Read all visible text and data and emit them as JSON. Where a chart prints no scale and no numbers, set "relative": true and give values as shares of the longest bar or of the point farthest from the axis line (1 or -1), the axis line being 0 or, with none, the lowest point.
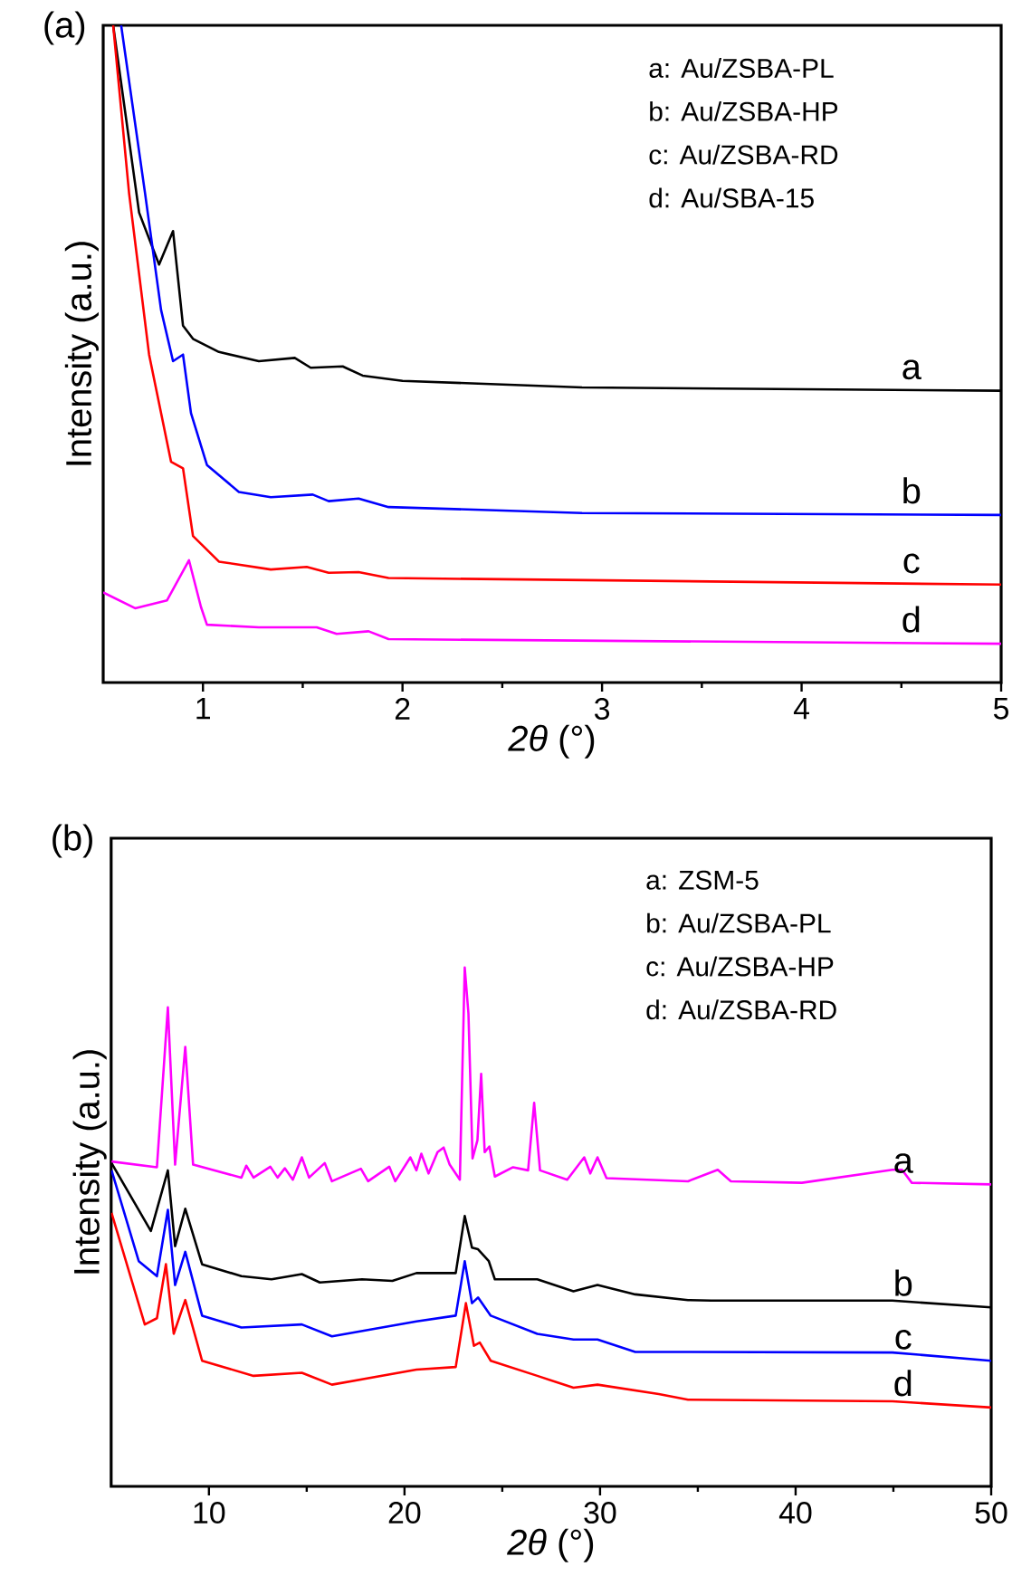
{
  "chart_data": [
    {
      "type": "line",
      "title": "(a)",
      "xlabel": "*2θ* (°)",
      "ylabel": "Intensity (a.u.)",
      "relative": true,
      "xlim": [
        0.5,
        5
      ],
      "xticks": [
        1,
        2,
        3,
        4,
        5
      ],
      "annotations": [
        "a: Au/ZSBA-PL",
        "b: Au/ZSBA-HP",
        "c: Au/ZSBA-RD",
        "d: Au/SBA-15"
      ],
      "series": [
        {
          "name": "a",
          "color": "#000000",
          "x": [
            0.55,
            0.68,
            0.78,
            0.85,
            0.9,
            0.95,
            1.08,
            1.28,
            1.46,
            1.54,
            1.7,
            1.8,
            2.0,
            2.9,
            5.0
          ],
          "values": [
            1,
            0.715,
            0.636,
            0.687,
            0.543,
            0.523,
            0.503,
            0.489,
            0.494,
            0.479,
            0.481,
            0.467,
            0.459,
            0.449,
            0.444
          ]
        },
        {
          "name": "b",
          "color": "#0000ff",
          "x": [
            0.59,
            0.71,
            0.79,
            0.85,
            0.9,
            0.94,
            1.02,
            1.18,
            1.34,
            1.55,
            1.63,
            1.78,
            1.93,
            2.9,
            5.0
          ],
          "values": [
            1,
            0.744,
            0.567,
            0.489,
            0.499,
            0.41,
            0.331,
            0.29,
            0.282,
            0.286,
            0.276,
            0.28,
            0.267,
            0.258,
            0.255
          ]
        },
        {
          "name": "c",
          "color": "#ff0000",
          "x": [
            0.55,
            0.63,
            0.73,
            0.84,
            0.9,
            0.95,
            1.08,
            1.34,
            1.52,
            1.63,
            1.78,
            1.93,
            5.0
          ],
          "values": [
            1,
            0.744,
            0.499,
            0.336,
            0.326,
            0.223,
            0.184,
            0.172,
            0.176,
            0.167,
            0.168,
            0.159,
            0.149
          ]
        },
        {
          "name": "d",
          "color": "#ff00ff",
          "x": [
            0.5,
            0.66,
            0.82,
            0.93,
            0.99,
            1.02,
            1.28,
            1.57,
            1.67,
            1.83,
            1.93,
            5.0
          ],
          "values": [
            0.137,
            0.113,
            0.125,
            0.186,
            0.115,
            0.088,
            0.084,
            0.084,
            0.074,
            0.078,
            0.066,
            0.059
          ]
        }
      ]
    },
    {
      "type": "line",
      "title": "(b)",
      "xlabel": "*2θ* (°)",
      "ylabel": "Intensity (a.u.)",
      "relative": true,
      "xlim": [
        5,
        50
      ],
      "xticks": [
        10,
        20,
        30,
        40,
        50
      ],
      "annotations": [
        "a: ZSM-5",
        "b: Au/ZSBA-PL",
        "c: Au/ZSBA-HP",
        "d: Au/ZSBA-RD"
      ],
      "series": [
        {
          "name": "a",
          "color": "#ff00ff",
          "x": [
            5.02,
            7.34,
            7.9,
            8.27,
            8.79,
            9.19,
            11.66,
            11.91,
            12.28,
            13.14,
            13.51,
            13.88,
            14.29,
            14.75,
            15.12,
            15.92,
            16.29,
            17.77,
            18.14,
            19.22,
            19.53,
            20.3,
            20.61,
            20.86,
            21.23,
            21.69,
            22.0,
            22.31,
            22.83,
            23.08,
            23.27,
            23.48,
            23.73,
            23.92,
            24.1,
            24.34,
            24.62,
            25.55,
            26.32,
            26.63,
            26.93,
            28.32,
            29.19,
            29.5,
            29.87,
            30.33,
            34.5,
            36.02,
            36.69,
            40.32,
            44.95,
            45.44,
            45.94,
            50.0
          ],
          "values": [
            0.626,
            0.615,
            0.923,
            0.62,
            0.847,
            0.62,
            0.595,
            0.618,
            0.595,
            0.616,
            0.595,
            0.613,
            0.591,
            0.634,
            0.595,
            0.623,
            0.588,
            0.612,
            0.588,
            0.616,
            0.588,
            0.634,
            0.609,
            0.641,
            0.603,
            0.644,
            0.653,
            0.62,
            0.591,
            1,
            0.911,
            0.632,
            0.667,
            0.795,
            0.644,
            0.655,
            0.597,
            0.615,
            0.609,
            0.739,
            0.609,
            0.591,
            0.634,
            0.603,
            0.634,
            0.594,
            0.588,
            0.61,
            0.588,
            0.585,
            0.61,
            0.61,
            0.585,
            0.582
          ]
        },
        {
          "name": "b",
          "color": "#000000",
          "x": [
            5.02,
            7.03,
            7.9,
            8.27,
            8.79,
            9.65,
            11.66,
            13.2,
            14.75,
            15.67,
            17.83,
            19.38,
            20.61,
            22.62,
            23.08,
            23.45,
            23.76,
            24.31,
            24.62,
            26.79,
            28.64,
            29.87,
            31.8,
            34.5,
            35.69,
            44.95,
            50.0
          ],
          "values": [
            0.623,
            0.492,
            0.609,
            0.463,
            0.535,
            0.428,
            0.405,
            0.399,
            0.409,
            0.393,
            0.399,
            0.396,
            0.411,
            0.411,
            0.521,
            0.46,
            0.457,
            0.434,
            0.399,
            0.399,
            0.376,
            0.388,
            0.37,
            0.359,
            0.358,
            0.358,
            0.345
          ]
        },
        {
          "name": "c",
          "color": "#0000ff",
          "x": [
            5.02,
            6.41,
            7.34,
            7.9,
            8.27,
            8.79,
            9.65,
            11.66,
            14.75,
            16.29,
            20.61,
            22.62,
            23.08,
            23.45,
            23.76,
            24.41,
            26.79,
            28.64,
            29.87,
            31.8,
            34.5,
            44.95,
            50.0
          ],
          "values": [
            0.609,
            0.434,
            0.405,
            0.533,
            0.388,
            0.452,
            0.329,
            0.306,
            0.312,
            0.289,
            0.318,
            0.329,
            0.434,
            0.353,
            0.364,
            0.329,
            0.294,
            0.283,
            0.283,
            0.259,
            0.259,
            0.258,
            0.242
          ]
        },
        {
          "name": "d",
          "color": "#ff0000",
          "x": [
            5.02,
            6.72,
            7.34,
            7.8,
            8.2,
            8.79,
            9.65,
            12.28,
            14.75,
            16.29,
            20.61,
            22.62,
            23.14,
            23.55,
            23.85,
            24.41,
            26.79,
            28.64,
            29.87,
            33.0,
            34.5,
            44.95,
            50.0
          ],
          "values": [
            0.527,
            0.312,
            0.324,
            0.428,
            0.294,
            0.359,
            0.242,
            0.213,
            0.219,
            0.196,
            0.225,
            0.23,
            0.353,
            0.271,
            0.277,
            0.242,
            0.213,
            0.19,
            0.196,
            0.178,
            0.167,
            0.164,
            0.152
          ]
        }
      ]
    }
  ]
}
